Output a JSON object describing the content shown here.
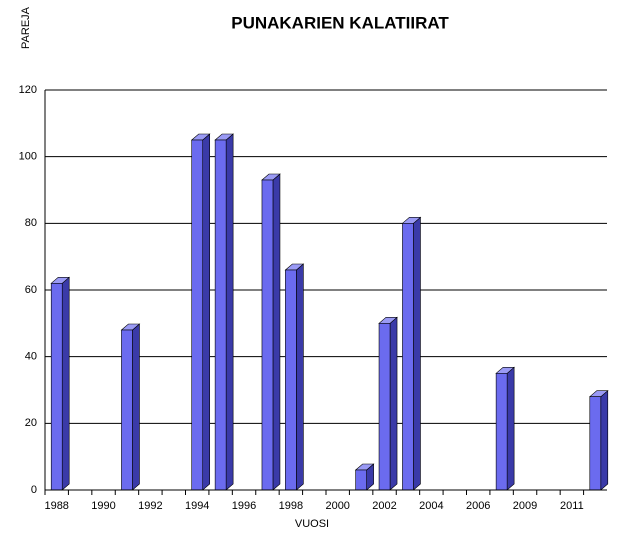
{
  "chart_data": {
    "type": "bar3d",
    "title": "PUNAKARIEN KALATIIRAT",
    "y_label": "PAREJA",
    "x_label": "VUOSI",
    "categories": [
      "1988",
      null,
      "1990",
      null,
      "1992",
      null,
      "1994",
      null,
      "1996",
      null,
      "1998",
      null,
      "2000",
      null,
      "2002",
      null,
      "2004",
      null,
      "2006",
      null,
      "2009",
      null,
      "2011",
      null
    ],
    "values": [
      62,
      null,
      null,
      48,
      null,
      null,
      105,
      105,
      null,
      93,
      66,
      null,
      null,
      6,
      50,
      80,
      null,
      null,
      null,
      35,
      null,
      null,
      null,
      28
    ],
    "color": "#6b6bef",
    "ylim": [
      0,
      120
    ],
    "yticks": [
      0,
      20,
      40,
      60,
      80,
      100,
      120
    ],
    "grid": true
  }
}
